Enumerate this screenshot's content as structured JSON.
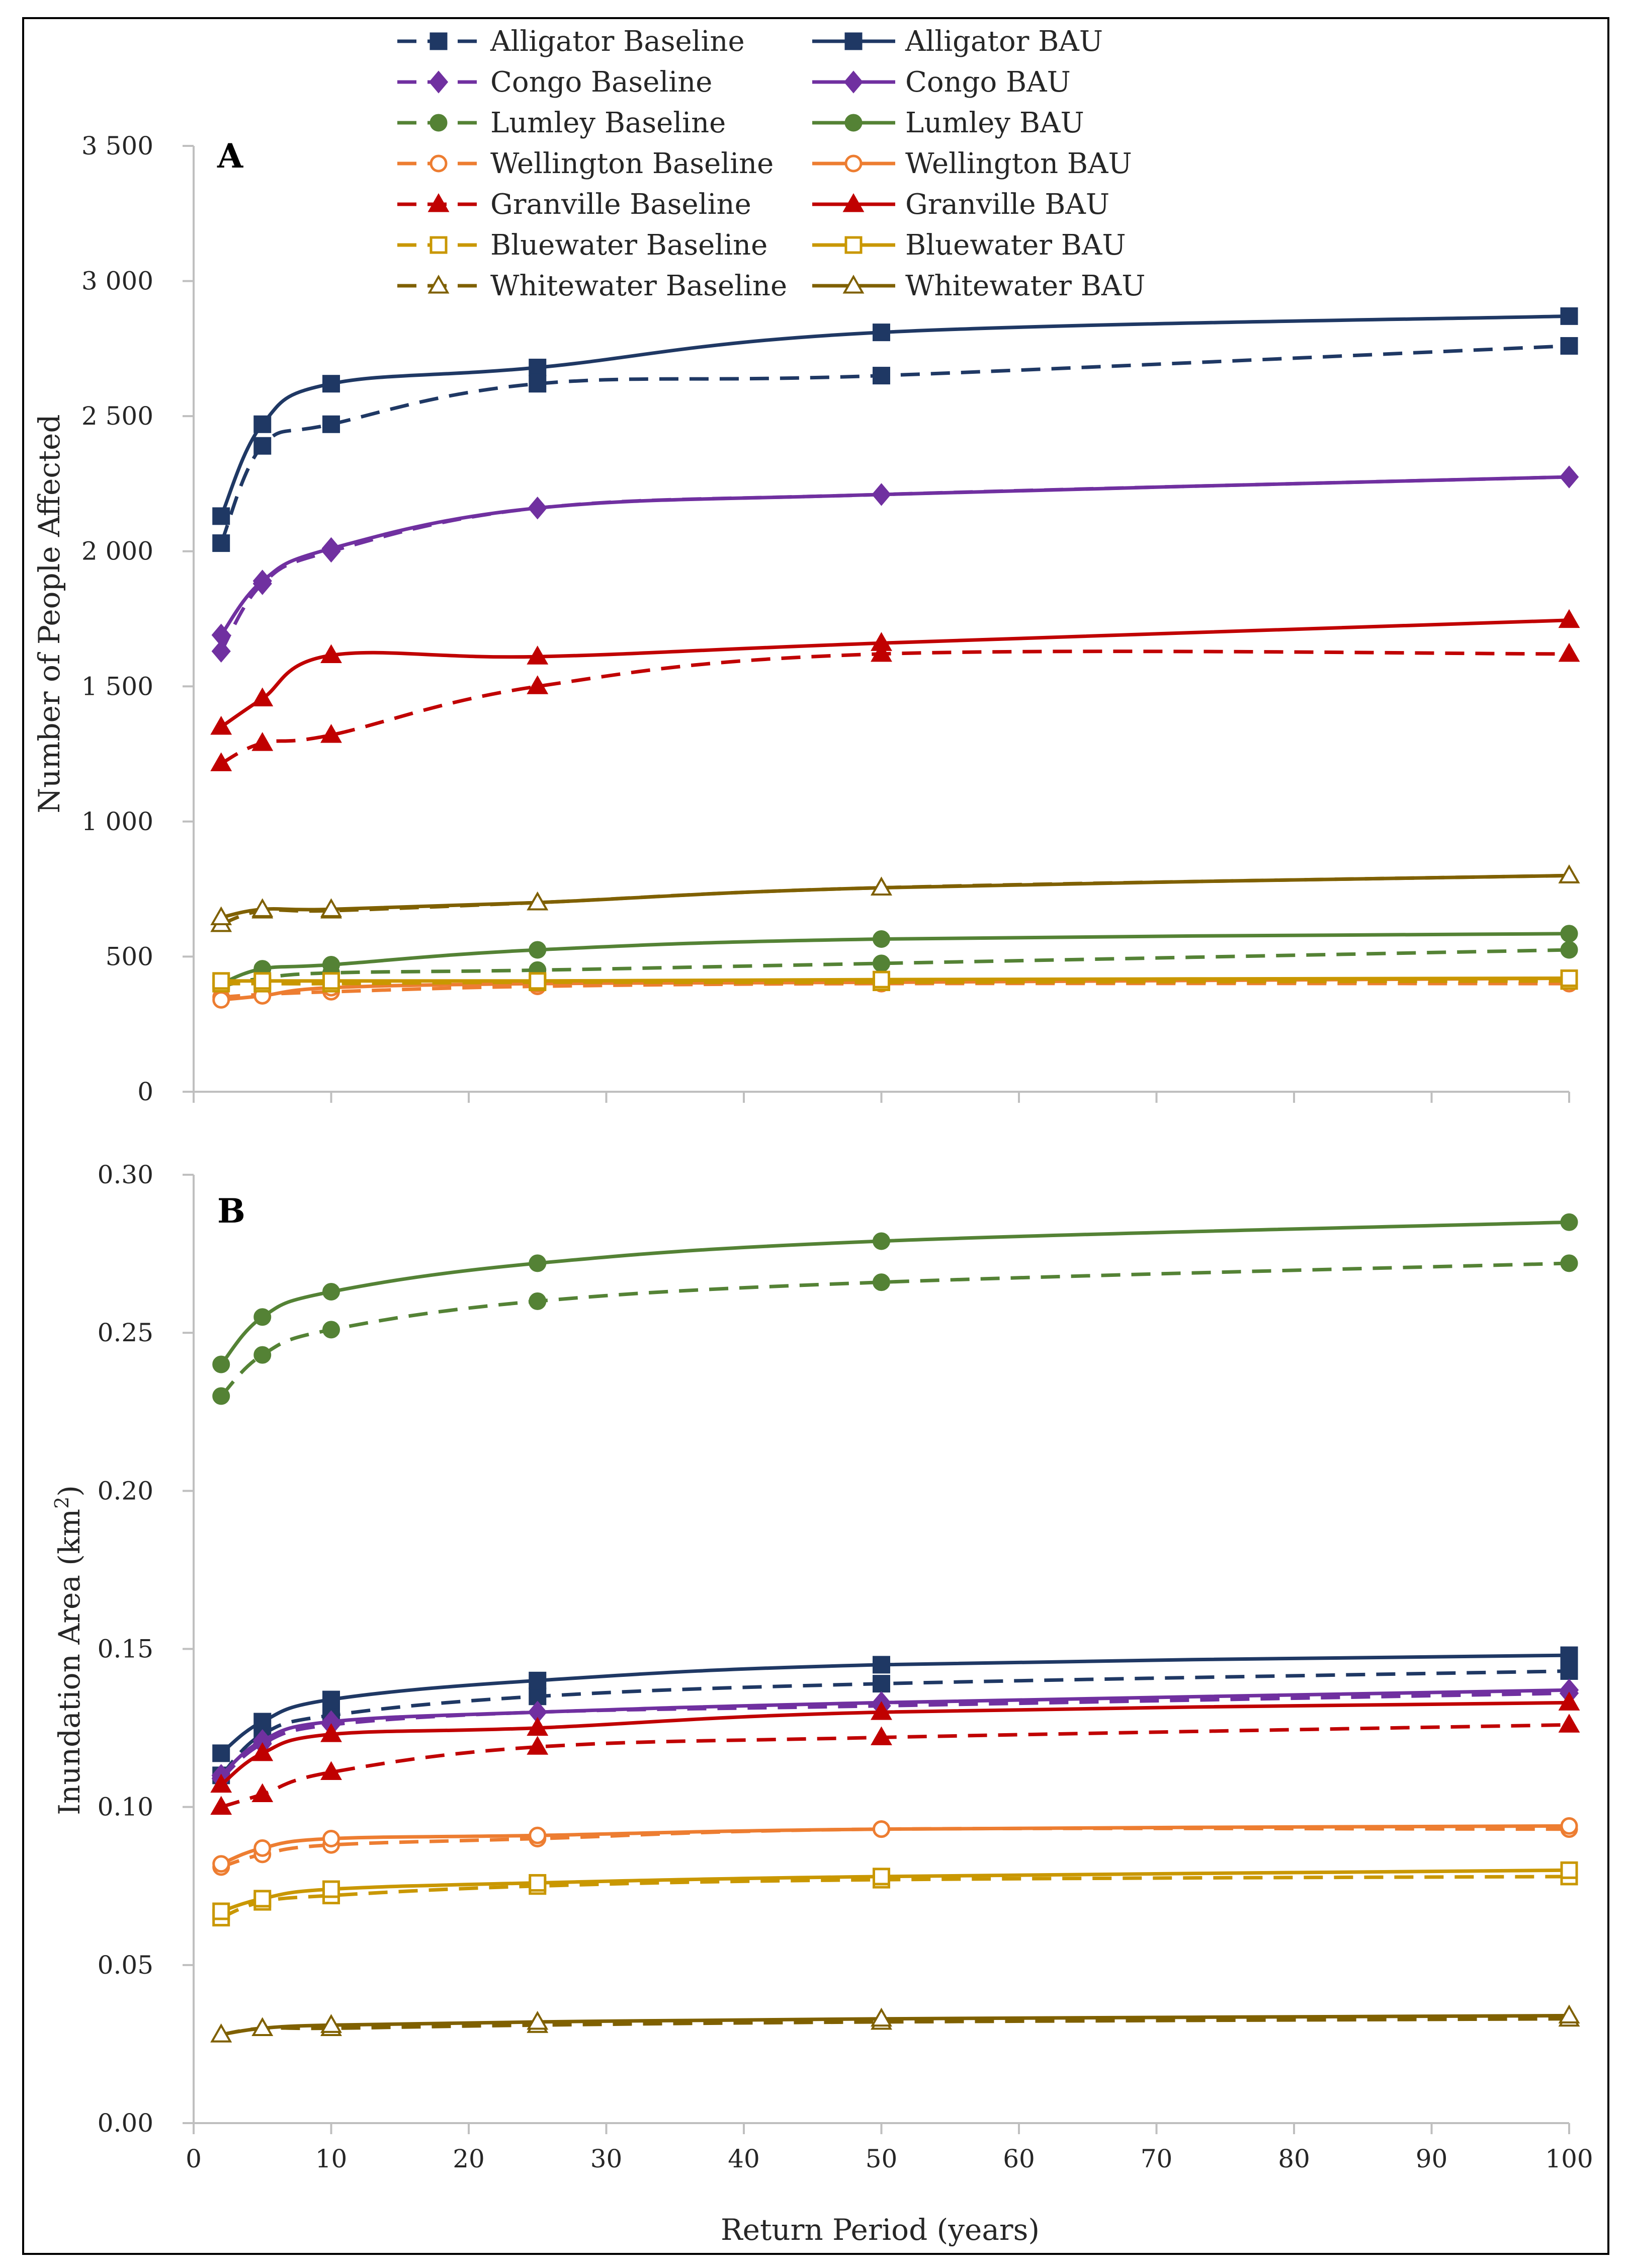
{
  "chart_data": [
    {
      "type": "line",
      "panel_label": "A",
      "ylabel": "Number of People Affected",
      "xlabel": "",
      "xlim": [
        0,
        100
      ],
      "ylim": [
        0,
        3500
      ],
      "x_ticks": [
        0,
        10,
        20,
        30,
        40,
        50,
        60,
        70,
        80,
        90,
        100
      ],
      "y_ticks": [
        0,
        500,
        1000,
        1500,
        2000,
        2500,
        3000,
        3500
      ],
      "y_tick_labels": [
        "0",
        "500",
        "1 000",
        "1 500",
        "2 000",
        "2 500",
        "3 000",
        "3 500"
      ],
      "x": [
        2,
        5,
        10,
        25,
        50,
        100
      ],
      "series": [
        {
          "name": "Alligator Baseline",
          "values": [
            2030,
            2390,
            2470,
            2620,
            2650,
            2760
          ],
          "color": "#1f3864",
          "dash": true,
          "marker": "square"
        },
        {
          "name": "Alligator BAU",
          "values": [
            2130,
            2470,
            2620,
            2680,
            2810,
            2870
          ],
          "color": "#1f3864",
          "dash": false,
          "marker": "square"
        },
        {
          "name": "Congo Baseline",
          "values": [
            1630,
            1880,
            2000,
            2160,
            2210,
            2275
          ],
          "color": "#7030a0",
          "dash": true,
          "marker": "diamond"
        },
        {
          "name": "Congo BAU",
          "values": [
            1690,
            1890,
            2010,
            2160,
            2210,
            2275
          ],
          "color": "#7030a0",
          "dash": false,
          "marker": "diamond"
        },
        {
          "name": "Lumley Baseline",
          "values": [
            390,
            420,
            440,
            450,
            475,
            525
          ],
          "color": "#548235",
          "dash": true,
          "marker": "circle"
        },
        {
          "name": "Lumley BAU",
          "values": [
            400,
            455,
            470,
            525,
            565,
            585
          ],
          "color": "#548235",
          "dash": false,
          "marker": "circle"
        },
        {
          "name": "Wellington Baseline",
          "values": [
            350,
            360,
            370,
            390,
            400,
            400
          ],
          "color": "#ed7d31",
          "dash": true,
          "marker": "circle-open"
        },
        {
          "name": "Wellington BAU",
          "values": [
            340,
            355,
            385,
            400,
            405,
            420
          ],
          "color": "#ed7d31",
          "dash": false,
          "marker": "circle-open"
        },
        {
          "name": "Granville Baseline",
          "values": [
            1215,
            1290,
            1320,
            1500,
            1620,
            1620
          ],
          "color": "#c00000",
          "dash": true,
          "marker": "triangle"
        },
        {
          "name": "Granville BAU",
          "values": [
            1350,
            1455,
            1615,
            1610,
            1660,
            1745
          ],
          "color": "#c00000",
          "dash": false,
          "marker": "triangle"
        },
        {
          "name": "Bluewater Baseline",
          "values": [
            400,
            400,
            400,
            405,
            405,
            410
          ],
          "color": "#c99700",
          "dash": true,
          "marker": "square-open"
        },
        {
          "name": "Bluewater BAU",
          "values": [
            410,
            410,
            410,
            410,
            415,
            420
          ],
          "color": "#c99700",
          "dash": false,
          "marker": "square-open"
        },
        {
          "name": "Whitewater Baseline",
          "values": [
            620,
            670,
            670,
            700,
            755,
            800
          ],
          "color": "#7f6000",
          "dash": true,
          "marker": "triangle-open"
        },
        {
          "name": "Whitewater BAU",
          "values": [
            645,
            675,
            675,
            700,
            755,
            800
          ],
          "color": "#7f6000",
          "dash": false,
          "marker": "triangle-open"
        }
      ]
    },
    {
      "type": "line",
      "panel_label": "B",
      "ylabel": "Inundation Area (km",
      "ylabel_superscript": "2",
      "ylabel_close": ")",
      "xlabel": "Return Period (years)",
      "xlim": [
        0,
        100
      ],
      "ylim": [
        0,
        0.3
      ],
      "x_ticks": [
        0,
        10,
        20,
        30,
        40,
        50,
        60,
        70,
        80,
        90,
        100
      ],
      "y_ticks": [
        0,
        0.05,
        0.1,
        0.15,
        0.2,
        0.25,
        0.3
      ],
      "y_tick_labels": [
        "0.00",
        "0.05",
        "0.10",
        "0.15",
        "0.20",
        "0.25",
        "0.30"
      ],
      "x": [
        2,
        5,
        10,
        25,
        50,
        100
      ],
      "series": [
        {
          "name": "Alligator Baseline",
          "values": [
            0.11,
            0.123,
            0.129,
            0.135,
            0.139,
            0.143
          ],
          "color": "#1f3864",
          "dash": true,
          "marker": "square"
        },
        {
          "name": "Alligator BAU",
          "values": [
            0.117,
            0.127,
            0.134,
            0.14,
            0.145,
            0.148
          ],
          "color": "#1f3864",
          "dash": false,
          "marker": "square"
        },
        {
          "name": "Congo Baseline",
          "values": [
            0.109,
            0.12,
            0.126,
            0.13,
            0.132,
            0.136
          ],
          "color": "#7030a0",
          "dash": true,
          "marker": "diamond"
        },
        {
          "name": "Congo BAU",
          "values": [
            0.11,
            0.121,
            0.127,
            0.13,
            0.133,
            0.137
          ],
          "color": "#7030a0",
          "dash": false,
          "marker": "diamond"
        },
        {
          "name": "Lumley Baseline",
          "values": [
            0.23,
            0.243,
            0.251,
            0.26,
            0.266,
            0.272
          ],
          "color": "#548235",
          "dash": true,
          "marker": "circle"
        },
        {
          "name": "Lumley BAU",
          "values": [
            0.24,
            0.255,
            0.263,
            0.272,
            0.279,
            0.285
          ],
          "color": "#548235",
          "dash": false,
          "marker": "circle"
        },
        {
          "name": "Wellington Baseline",
          "values": [
            0.081,
            0.085,
            0.088,
            0.09,
            0.093,
            0.093
          ],
          "color": "#ed7d31",
          "dash": true,
          "marker": "circle-open"
        },
        {
          "name": "Wellington BAU",
          "values": [
            0.082,
            0.087,
            0.09,
            0.091,
            0.093,
            0.094
          ],
          "color": "#ed7d31",
          "dash": false,
          "marker": "circle-open"
        },
        {
          "name": "Granville Baseline",
          "values": [
            0.1,
            0.104,
            0.111,
            0.119,
            0.122,
            0.126
          ],
          "color": "#c00000",
          "dash": true,
          "marker": "triangle"
        },
        {
          "name": "Granville BAU",
          "values": [
            0.107,
            0.117,
            0.123,
            0.125,
            0.13,
            0.133
          ],
          "color": "#c00000",
          "dash": false,
          "marker": "triangle"
        },
        {
          "name": "Bluewater Baseline",
          "values": [
            0.065,
            0.07,
            0.072,
            0.075,
            0.077,
            0.078
          ],
          "color": "#c99700",
          "dash": true,
          "marker": "square-open"
        },
        {
          "name": "Bluewater BAU",
          "values": [
            0.067,
            0.071,
            0.074,
            0.076,
            0.078,
            0.08
          ],
          "color": "#c99700",
          "dash": false,
          "marker": "square-open"
        },
        {
          "name": "Whitewater Baseline",
          "values": [
            0.028,
            0.03,
            0.03,
            0.031,
            0.032,
            0.033
          ],
          "color": "#7f6000",
          "dash": true,
          "marker": "triangle-open"
        },
        {
          "name": "Whitewater BAU",
          "values": [
            0.028,
            0.03,
            0.031,
            0.032,
            0.033,
            0.034
          ],
          "color": "#7f6000",
          "dash": false,
          "marker": "triangle-open"
        }
      ]
    }
  ]
}
